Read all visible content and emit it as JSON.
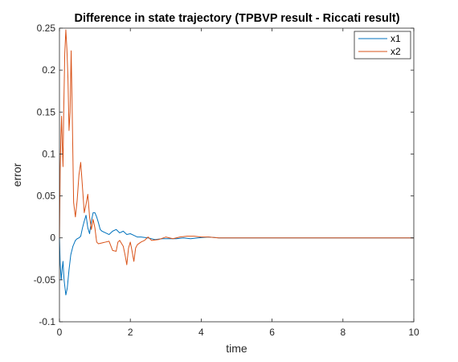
{
  "chart_data": {
    "type": "line",
    "title": "Difference in state trajectory (TPBVP result - Riccati result)",
    "xlabel": "time",
    "ylabel": "error",
    "xlim": [
      0,
      10
    ],
    "ylim": [
      -0.1,
      0.25
    ],
    "xticks": [
      0,
      2,
      4,
      6,
      8,
      10
    ],
    "xtick_labels": [
      "0",
      "2",
      "4",
      "6",
      "8",
      "10"
    ],
    "yticks": [
      -0.1,
      -0.05,
      0,
      0.05,
      0.1,
      0.15,
      0.2,
      0.25
    ],
    "ytick_labels": [
      "-0.1",
      "-0.05",
      "0",
      "0.05",
      "0.1",
      "0.15",
      "0.2",
      "0.25"
    ],
    "grid": false,
    "legend_position": "top-right",
    "series": [
      {
        "name": "x1",
        "color": "#0072BD",
        "x": [
          0,
          0.02,
          0.05,
          0.08,
          0.1,
          0.13,
          0.18,
          0.22,
          0.27,
          0.32,
          0.38,
          0.45,
          0.5,
          0.55,
          0.6,
          0.65,
          0.7,
          0.75,
          0.8,
          0.85,
          0.9,
          0.95,
          1.0,
          1.05,
          1.1,
          1.15,
          1.2,
          1.3,
          1.4,
          1.5,
          1.6,
          1.7,
          1.8,
          1.9,
          2.0,
          2.1,
          2.2,
          2.3,
          2.5,
          2.7,
          2.9,
          3.1,
          3.3,
          3.5,
          3.7,
          3.9,
          4.2,
          4.5,
          5,
          6,
          7,
          8,
          9,
          10
        ],
        "y": [
          0,
          -0.03,
          -0.05,
          -0.035,
          -0.028,
          -0.05,
          -0.068,
          -0.06,
          -0.038,
          -0.02,
          -0.01,
          -0.003,
          -0.001,
          0,
          0.002,
          0.012,
          0.02,
          0.027,
          0.012,
          0.005,
          0.02,
          0.03,
          0.03,
          0.025,
          0.018,
          0.01,
          0.008,
          0.006,
          0.004,
          0.008,
          0.01,
          0.006,
          0.008,
          0.004,
          0.005,
          0.003,
          0.001,
          0.001,
          0,
          -0.002,
          -0.001,
          -0.001,
          -0.001,
          0,
          -0.001,
          0,
          0.001,
          0,
          0,
          0,
          0,
          0,
          0,
          0
        ]
      },
      {
        "name": "x2",
        "color": "#D95319",
        "x": [
          0,
          0.02,
          0.04,
          0.06,
          0.08,
          0.1,
          0.12,
          0.15,
          0.18,
          0.21,
          0.24,
          0.27,
          0.3,
          0.33,
          0.36,
          0.4,
          0.45,
          0.5,
          0.55,
          0.6,
          0.65,
          0.7,
          0.75,
          0.8,
          0.85,
          0.9,
          0.95,
          1.0,
          1.05,
          1.1,
          1.2,
          1.3,
          1.4,
          1.5,
          1.6,
          1.65,
          1.7,
          1.8,
          1.85,
          1.9,
          1.95,
          2.0,
          2.05,
          2.1,
          2.15,
          2.2,
          2.3,
          2.4,
          2.5,
          2.6,
          2.8,
          3.0,
          3.2,
          3.4,
          3.6,
          3.8,
          4.0,
          4.2,
          4.5,
          5,
          6,
          7,
          8,
          9,
          10
        ],
        "y": [
          0,
          0.08,
          0.12,
          0.145,
          0.11,
          0.085,
          0.15,
          0.22,
          0.248,
          0.225,
          0.19,
          0.128,
          0.15,
          0.223,
          0.15,
          0.042,
          0.025,
          0.045,
          0.075,
          0.09,
          0.06,
          0.03,
          0.04,
          0.052,
          0.025,
          0.01,
          0.022,
          0.012,
          -0.005,
          -0.007,
          -0.006,
          -0.005,
          -0.004,
          -0.015,
          -0.016,
          -0.005,
          -0.003,
          -0.01,
          -0.02,
          -0.032,
          -0.012,
          -0.005,
          -0.016,
          -0.028,
          -0.012,
          -0.008,
          -0.005,
          -0.003,
          0.001,
          -0.003,
          -0.002,
          0.001,
          -0.001,
          0.001,
          0.002,
          0.002,
          0.001,
          0.001,
          0,
          0,
          0,
          0,
          0,
          0,
          0
        ]
      }
    ]
  }
}
